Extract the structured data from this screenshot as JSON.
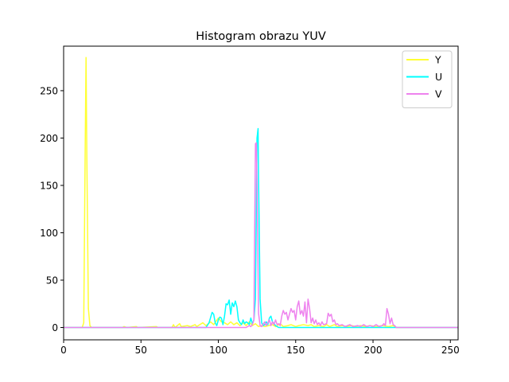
{
  "chart_data": {
    "type": "line",
    "title": "Histogram obrazu YUV",
    "xlabel": "",
    "ylabel": "",
    "xlim": [
      0,
      255
    ],
    "ylim": [
      -13,
      297
    ],
    "xticks": [
      "0",
      "50",
      "100",
      "150",
      "200",
      "250"
    ],
    "yticks": [
      "0",
      "50",
      "100",
      "150",
      "200",
      "250"
    ],
    "grid": false,
    "legend_position": "top-right",
    "series": [
      {
        "name": "Y",
        "color": "#ffff33",
        "points": [
          [
            0,
            0
          ],
          [
            12,
            0
          ],
          [
            13,
            5
          ],
          [
            14,
            200
          ],
          [
            14.5,
            285
          ],
          [
            15,
            180
          ],
          [
            16,
            20
          ],
          [
            17,
            2
          ],
          [
            18,
            0
          ],
          [
            38,
            0
          ],
          [
            39,
            1
          ],
          [
            41,
            0
          ],
          [
            47,
            1
          ],
          [
            48,
            0
          ],
          [
            60,
            1
          ],
          [
            61,
            0
          ],
          [
            70,
            0
          ],
          [
            71,
            3
          ],
          [
            72,
            0
          ],
          [
            75,
            4
          ],
          [
            76,
            1
          ],
          [
            80,
            2
          ],
          [
            82,
            1
          ],
          [
            85,
            3
          ],
          [
            86,
            1
          ],
          [
            90,
            5
          ],
          [
            92,
            2
          ],
          [
            95,
            6
          ],
          [
            97,
            3
          ],
          [
            100,
            10
          ],
          [
            102,
            6
          ],
          [
            104,
            5
          ],
          [
            106,
            3
          ],
          [
            108,
            6
          ],
          [
            110,
            3
          ],
          [
            112,
            5
          ],
          [
            114,
            2
          ],
          [
            116,
            5
          ],
          [
            118,
            2
          ],
          [
            120,
            6
          ],
          [
            122,
            2
          ],
          [
            124,
            4
          ],
          [
            126,
            1
          ],
          [
            128,
            2
          ],
          [
            130,
            1
          ],
          [
            135,
            3
          ],
          [
            137,
            1
          ],
          [
            140,
            4
          ],
          [
            142,
            1
          ],
          [
            145,
            2
          ],
          [
            147,
            3
          ],
          [
            150,
            1
          ],
          [
            152,
            2
          ],
          [
            155,
            3
          ],
          [
            158,
            2
          ],
          [
            160,
            3
          ],
          [
            162,
            1
          ],
          [
            165,
            2
          ],
          [
            168,
            1
          ],
          [
            170,
            3
          ],
          [
            172,
            1
          ],
          [
            175,
            3
          ],
          [
            177,
            1
          ],
          [
            180,
            2
          ],
          [
            183,
            1
          ],
          [
            186,
            2
          ],
          [
            189,
            1
          ],
          [
            192,
            2
          ],
          [
            195,
            1
          ],
          [
            198,
            2
          ],
          [
            202,
            1
          ],
          [
            206,
            2
          ],
          [
            210,
            1
          ],
          [
            213,
            2
          ],
          [
            215,
            0
          ],
          [
            255,
            0
          ]
        ]
      },
      {
        "name": "U",
        "color": "#00ffff",
        "points": [
          [
            0,
            0
          ],
          [
            92,
            0
          ],
          [
            94,
            5
          ],
          [
            96,
            16
          ],
          [
            97,
            14
          ],
          [
            98,
            5
          ],
          [
            99,
            2
          ],
          [
            100,
            8
          ],
          [
            101,
            11
          ],
          [
            102,
            10
          ],
          [
            103,
            3
          ],
          [
            104,
            12
          ],
          [
            105,
            25
          ],
          [
            106,
            24
          ],
          [
            107,
            29
          ],
          [
            108,
            14
          ],
          [
            109,
            26
          ],
          [
            110,
            22
          ],
          [
            111,
            28
          ],
          [
            112,
            22
          ],
          [
            113,
            8
          ],
          [
            114,
            5
          ],
          [
            115,
            3
          ],
          [
            116,
            8
          ],
          [
            117,
            4
          ],
          [
            118,
            6
          ],
          [
            119,
            5
          ],
          [
            120,
            3
          ],
          [
            121,
            10
          ],
          [
            122,
            4
          ],
          [
            123,
            8
          ],
          [
            124,
            30
          ],
          [
            125,
            200
          ],
          [
            125.7,
            210
          ],
          [
            126,
            160
          ],
          [
            127,
            30
          ],
          [
            128,
            5
          ],
          [
            129,
            2
          ],
          [
            130,
            3
          ],
          [
            131,
            6
          ],
          [
            132,
            3
          ],
          [
            133,
            10
          ],
          [
            134,
            12
          ],
          [
            135,
            6
          ],
          [
            136,
            4
          ],
          [
            137,
            2
          ],
          [
            138,
            1
          ],
          [
            139,
            0
          ],
          [
            255,
            0
          ]
        ]
      },
      {
        "name": "V",
        "color": "#ee82ee",
        "points": [
          [
            0,
            0
          ],
          [
            118,
            0
          ],
          [
            120,
            2
          ],
          [
            121,
            1
          ],
          [
            122,
            3
          ],
          [
            123,
            8
          ],
          [
            124,
            194
          ],
          [
            124.6,
            195
          ],
          [
            125,
            150
          ],
          [
            126,
            15
          ],
          [
            127,
            2
          ],
          [
            128,
            1
          ],
          [
            130,
            6
          ],
          [
            131,
            2
          ],
          [
            133,
            8
          ],
          [
            134,
            2
          ],
          [
            135,
            6
          ],
          [
            136,
            3
          ],
          [
            137,
            8
          ],
          [
            138,
            3
          ],
          [
            139,
            4
          ],
          [
            140,
            2
          ],
          [
            141,
            12
          ],
          [
            142,
            18
          ],
          [
            143,
            14
          ],
          [
            144,
            16
          ],
          [
            145,
            8
          ],
          [
            146,
            14
          ],
          [
            147,
            20
          ],
          [
            148,
            16
          ],
          [
            149,
            18
          ],
          [
            150,
            8
          ],
          [
            151,
            22
          ],
          [
            152,
            28
          ],
          [
            153,
            14
          ],
          [
            154,
            18
          ],
          [
            155,
            12
          ],
          [
            156,
            27
          ],
          [
            157,
            5
          ],
          [
            158,
            30
          ],
          [
            159,
            20
          ],
          [
            160,
            5
          ],
          [
            161,
            10
          ],
          [
            162,
            4
          ],
          [
            163,
            8
          ],
          [
            164,
            3
          ],
          [
            165,
            5
          ],
          [
            166,
            2
          ],
          [
            167,
            6
          ],
          [
            168,
            3
          ],
          [
            170,
            4
          ],
          [
            171,
            15
          ],
          [
            172,
            12
          ],
          [
            173,
            14
          ],
          [
            174,
            6
          ],
          [
            175,
            8
          ],
          [
            176,
            3
          ],
          [
            177,
            4
          ],
          [
            178,
            2
          ],
          [
            180,
            3
          ],
          [
            182,
            1
          ],
          [
            185,
            3
          ],
          [
            187,
            1
          ],
          [
            190,
            2
          ],
          [
            192,
            1
          ],
          [
            194,
            3
          ],
          [
            196,
            1
          ],
          [
            198,
            2
          ],
          [
            200,
            1
          ],
          [
            202,
            3
          ],
          [
            204,
            1
          ],
          [
            206,
            2
          ],
          [
            207,
            4
          ],
          [
            208,
            2
          ],
          [
            209,
            20
          ],
          [
            210,
            14
          ],
          [
            211,
            4
          ],
          [
            212,
            10
          ],
          [
            213,
            3
          ],
          [
            214,
            2
          ],
          [
            215,
            0
          ],
          [
            255,
            0
          ]
        ]
      }
    ]
  }
}
